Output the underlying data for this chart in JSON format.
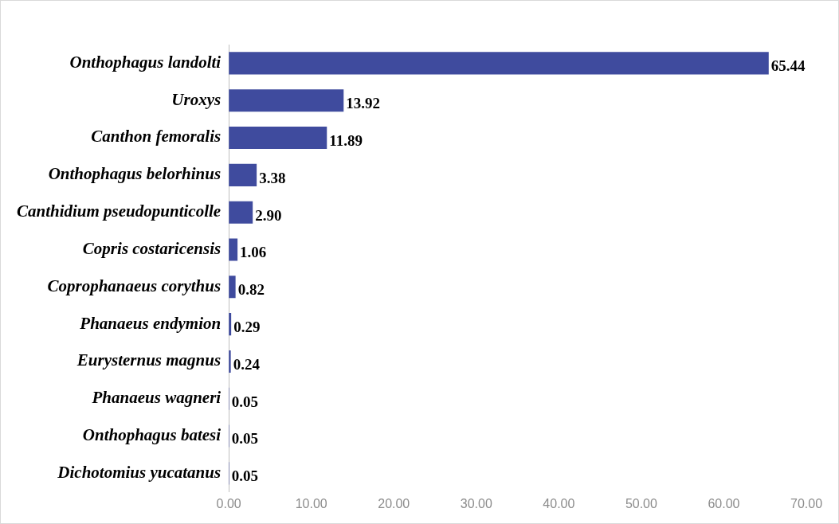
{
  "chart_data": {
    "type": "bar",
    "orientation": "horizontal",
    "categories": [
      "Onthophagus landolti",
      "Uroxys",
      "Canthon femoralis",
      "Onthophagus belorhinus",
      "Canthidium pseudopunticolle",
      "Copris costaricensis",
      "Coprophanaeus corythus",
      "Phanaeus endymion",
      "Eurysternus magnus",
      "Phanaeus wagneri",
      "Onthophagus batesi",
      "Dichotomius yucatanus"
    ],
    "values": [
      65.44,
      13.92,
      11.89,
      3.38,
      2.9,
      1.06,
      0.82,
      0.29,
      0.24,
      0.05,
      0.05,
      0.05
    ],
    "value_labels": [
      "65.44",
      "13.92",
      "11.89",
      "3.38",
      "2.90",
      "1.06",
      "0.82",
      "0.29",
      "0.24",
      "0.05",
      "0.05",
      "0.05"
    ],
    "color": "#3f4b9e",
    "xlim": [
      0,
      70
    ],
    "xticks": [
      {
        "value": 0,
        "label": "0.00"
      },
      {
        "value": 10,
        "label": "10.00"
      },
      {
        "value": 20,
        "label": "20.00"
      },
      {
        "value": 30,
        "label": "30.00"
      },
      {
        "value": 40,
        "label": "40.00"
      },
      {
        "value": 50,
        "label": "50.00"
      },
      {
        "value": 60,
        "label": "60.00"
      },
      {
        "value": 70,
        "label": "70.00"
      }
    ],
    "grid": false,
    "legend": false
  }
}
